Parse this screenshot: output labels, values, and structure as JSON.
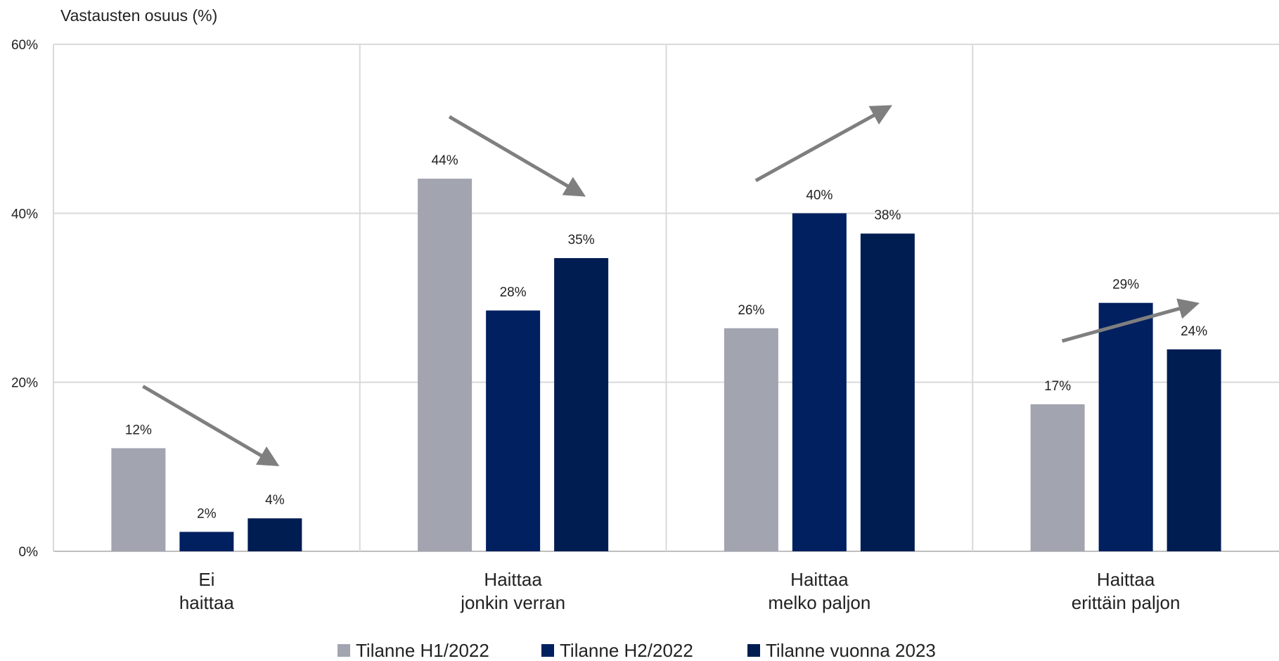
{
  "chart_data": {
    "type": "bar",
    "ylabel": "Vastausten osuus (%)",
    "ylim": [
      0,
      60
    ],
    "yticks": [
      0,
      20,
      40,
      60
    ],
    "ytick_suffix": "%",
    "grid": true,
    "legend_position": "bottom",
    "categories": [
      [
        "Ei",
        "haittaa"
      ],
      [
        "Haittaa",
        "jonkin verran"
      ],
      [
        "Haittaa",
        "melko paljon"
      ],
      [
        "Haittaa",
        "erittäin paljon"
      ]
    ],
    "series": [
      {
        "name": "Tilanne H1/2022",
        "color": "#a2a4b0",
        "values": [
          12.2,
          44.1,
          26.4,
          17.4
        ]
      },
      {
        "name": "Tilanne H2/2022",
        "color": "#002060",
        "values": [
          2.3,
          28.5,
          40.0,
          29.4
        ]
      },
      {
        "name": "Tilanne vuonna 2023",
        "color": "#001d52",
        "values": [
          3.9,
          34.7,
          37.6,
          23.9
        ]
      }
    ],
    "data_labels": [
      [
        "12%",
        "2%",
        "4%"
      ],
      [
        "44%",
        "28%",
        "35%"
      ],
      [
        "26%",
        "40%",
        "38%"
      ],
      [
        "17%",
        "29%",
        "24%"
      ]
    ],
    "trend_arrows": [
      "down",
      "down",
      "up",
      "up"
    ],
    "arrow_color": "#7f7f7f"
  }
}
